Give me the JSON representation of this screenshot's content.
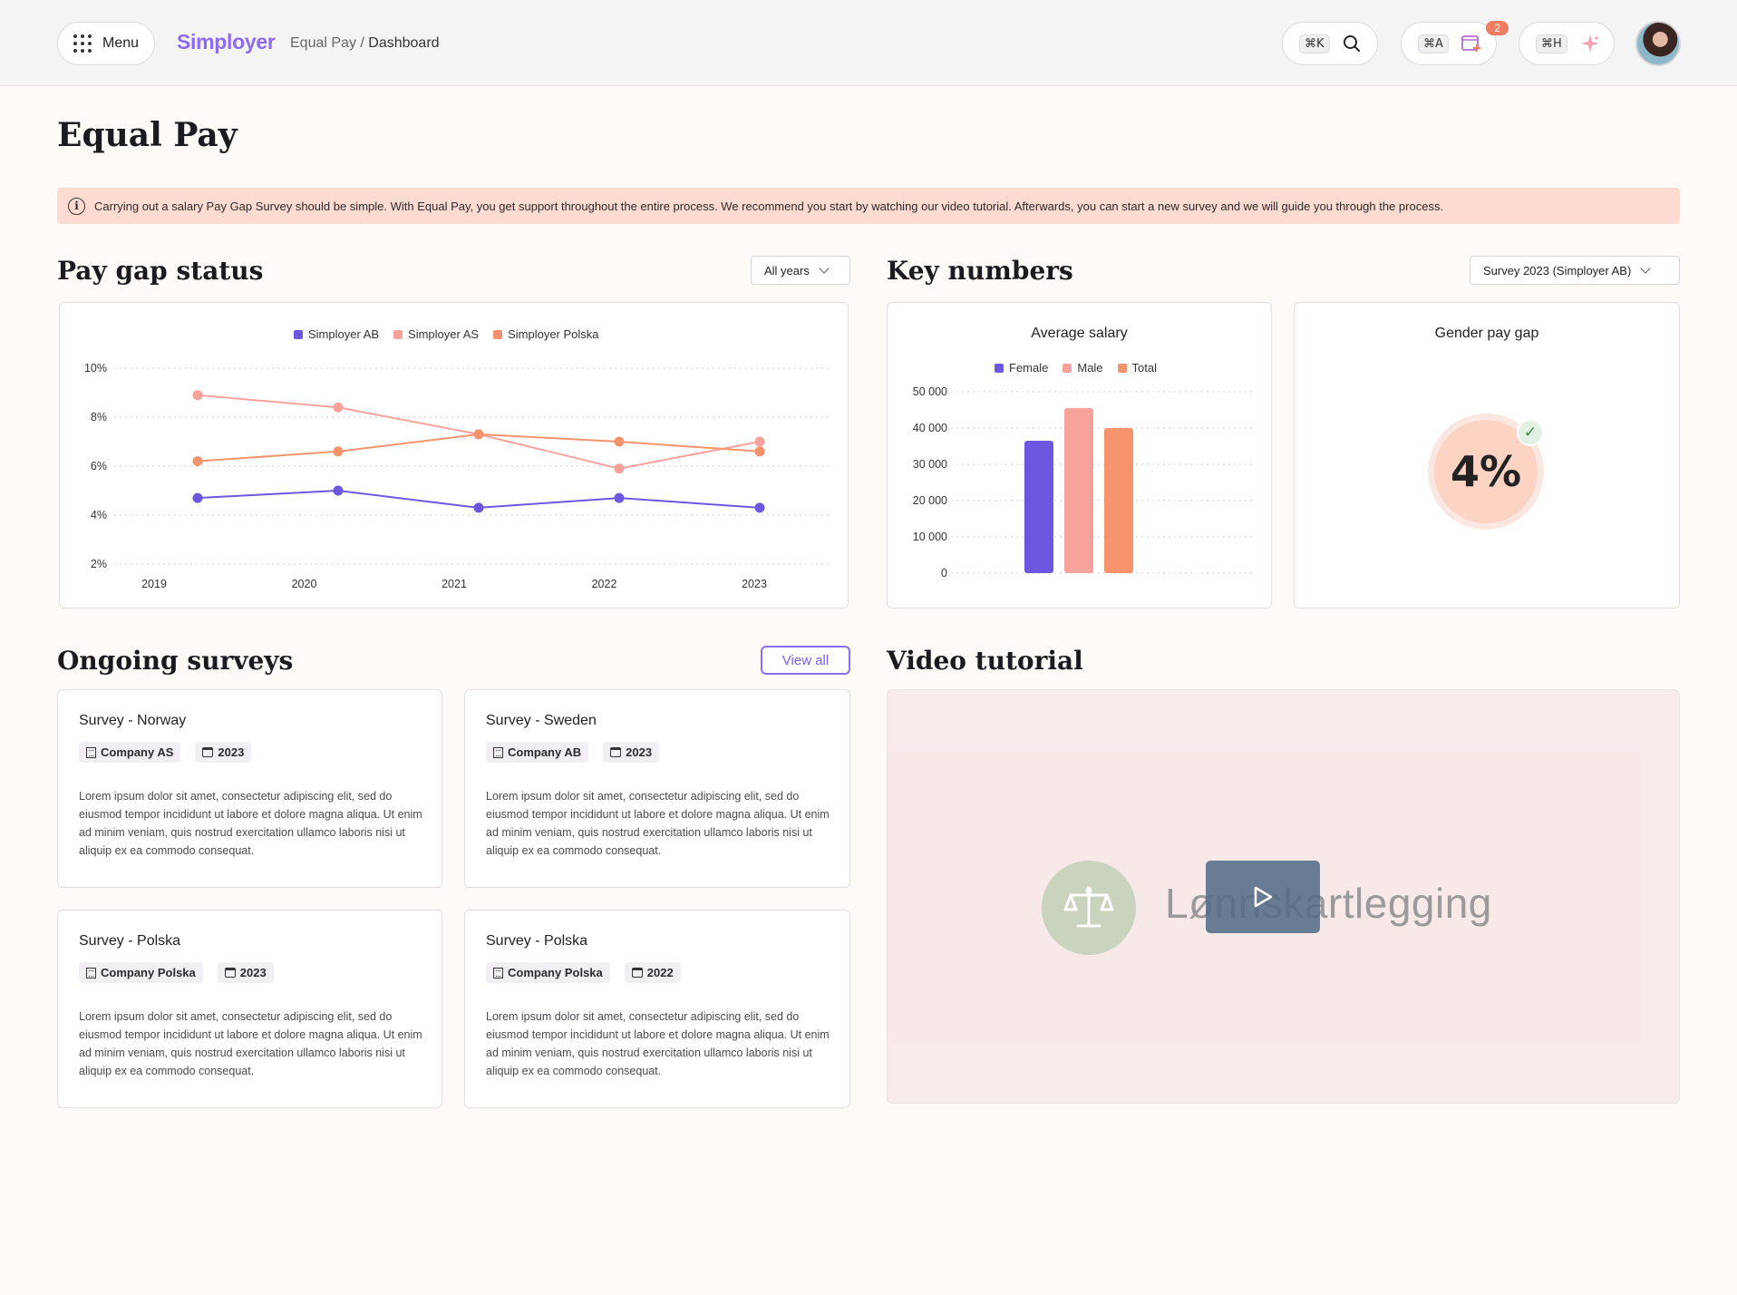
{
  "header": {
    "menu_label": "Menu",
    "logo": "Simployer",
    "breadcrumb_parent": "Equal Pay",
    "breadcrumb_sep": " / ",
    "breadcrumb_current": "Dashboard",
    "search_shortcut": "⌘K",
    "apps_shortcut": "⌘A",
    "apps_badge": "2",
    "help_shortcut": "⌘H"
  },
  "page": {
    "title": "Equal Pay",
    "info": "Carrying out a salary Pay Gap Survey should be simple. With Equal Pay, you get support throughout the entire process. We recommend you start by watching our video tutorial. Afterwards, you can start a new survey and we will guide you through the process."
  },
  "pay_gap": {
    "title": "Pay gap status",
    "filter": "All years"
  },
  "key_numbers": {
    "title": "Key numbers",
    "filter": "Survey 2023 (Simployer AB)",
    "avg_salary_title": "Average salary",
    "gender_gap_title": "Gender pay gap",
    "gender_gap_value": "4%"
  },
  "surveys": {
    "title": "Ongoing surveys",
    "view_all": "View all",
    "items": [
      {
        "title": "Survey - Norway",
        "company": "Company AS",
        "year": "2023",
        "desc": "Lorem ipsum dolor sit amet, consectetur adipiscing elit, sed do eiusmod tempor incididunt ut labore et dolore magna aliqua. Ut enim ad minim veniam, quis nostrud exercitation ullamco laboris nisi ut aliquip ex ea commodo consequat."
      },
      {
        "title": "Survey - Sweden",
        "company": "Company AB",
        "year": "2023",
        "desc": "Lorem ipsum dolor sit amet, consectetur adipiscing elit, sed do eiusmod tempor incididunt ut labore et dolore magna aliqua. Ut enim ad minim veniam, quis nostrud exercitation ullamco laboris nisi ut aliquip ex ea commodo consequat."
      },
      {
        "title": "Survey - Polska",
        "company": "Company Polska",
        "year": "2023",
        "desc": "Lorem ipsum dolor sit amet, consectetur adipiscing elit, sed do eiusmod tempor incididunt ut labore et dolore magna aliqua. Ut enim ad minim veniam, quis nostrud exercitation ullamco laboris nisi ut aliquip ex ea commodo consequat."
      },
      {
        "title": "Survey - Polska",
        "company": "Company Polska",
        "year": "2022",
        "desc": "Lorem ipsum dolor sit amet, consectetur adipiscing elit, sed do eiusmod tempor incididunt ut labore et dolore magna aliqua. Ut enim ad minim veniam, quis nostrud exercitation ullamco laboris nisi ut aliquip ex ea commodo consequat."
      }
    ]
  },
  "video": {
    "title": "Video tutorial",
    "brand_text": "Lønnskartlegging"
  },
  "chart_data": [
    {
      "type": "line",
      "x": [
        "2019",
        "2020",
        "2021",
        "2022",
        "2023"
      ],
      "y_ticks": [
        "10%",
        "8%",
        "6%",
        "4%",
        "2%"
      ],
      "ylim": [
        2,
        10
      ],
      "grid": true,
      "legend": "top-center",
      "series": [
        {
          "name": "Simployer AB",
          "color": "#6e57e0",
          "values": [
            4.7,
            5.0,
            4.3,
            4.7,
            4.3
          ]
        },
        {
          "name": "Simployer AS",
          "color": "#f7a39c",
          "values": [
            8.9,
            8.4,
            7.3,
            5.9,
            7.0
          ]
        },
        {
          "name": "Simployer Polska",
          "color": "#f5946c",
          "values": [
            6.2,
            6.6,
            7.3,
            7.0,
            6.6
          ]
        }
      ]
    },
    {
      "type": "bar",
      "categories": [
        "Female",
        "Male",
        "Total"
      ],
      "colors": [
        "#6e57e0",
        "#f7a39c",
        "#f5946c"
      ],
      "values": [
        36500,
        45500,
        40000
      ],
      "y_ticks": [
        "50 000",
        "40 000",
        "30 000",
        "20 000",
        "10 000",
        "0"
      ],
      "ylim": [
        0,
        50000
      ],
      "grid": true,
      "legend": "top-center"
    }
  ]
}
